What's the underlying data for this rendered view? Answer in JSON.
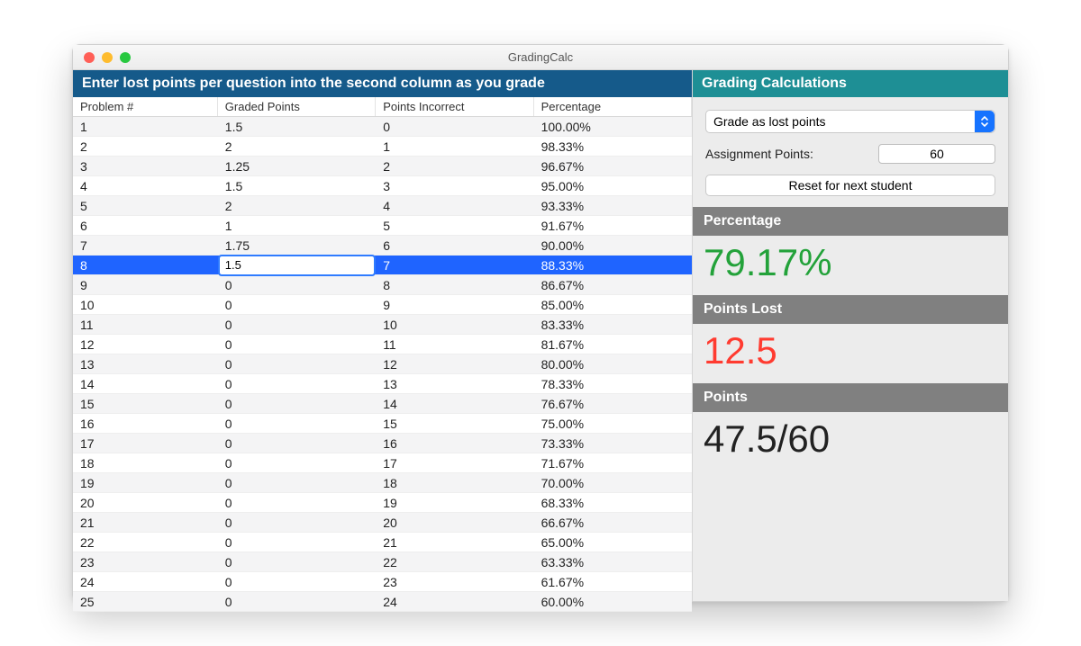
{
  "window": {
    "title": "GradingCalc"
  },
  "colors": {
    "title_bg_start": "#f8f8f8",
    "title_bg_end": "#ececec",
    "traffic_close": "#ff5f57",
    "traffic_min": "#febc2e",
    "traffic_max": "#28c840",
    "left_banner": "#155a8a",
    "right_banner": "#1e8f95",
    "stat_header": "#808080",
    "percentage_value": "#23a23a",
    "pointslost_value": "#ff3b30",
    "points_value": "#222222",
    "selection": "#1f64ff",
    "select_button": "#1673ff",
    "alt_row": "#f4f4f5"
  },
  "left": {
    "banner": "Enter lost points per question into the second column as you grade",
    "columns": [
      "Problem #",
      "Graded Points",
      "Points Incorrect",
      "Percentage"
    ],
    "selected_row_index": 7,
    "editing_cell": {
      "row": 7,
      "col": 1,
      "value": "1.5"
    },
    "rows": [
      {
        "problem": "1",
        "graded": "1.5",
        "incorrect": "0",
        "pct": "100.00%"
      },
      {
        "problem": "2",
        "graded": "2",
        "incorrect": "1",
        "pct": "98.33%"
      },
      {
        "problem": "3",
        "graded": "1.25",
        "incorrect": "2",
        "pct": "96.67%"
      },
      {
        "problem": "4",
        "graded": "1.5",
        "incorrect": "3",
        "pct": "95.00%"
      },
      {
        "problem": "5",
        "graded": "2",
        "incorrect": "4",
        "pct": "93.33%"
      },
      {
        "problem": "6",
        "graded": "1",
        "incorrect": "5",
        "pct": "91.67%"
      },
      {
        "problem": "7",
        "graded": "1.75",
        "incorrect": "6",
        "pct": "90.00%"
      },
      {
        "problem": "8",
        "graded": "1.5",
        "incorrect": "7",
        "pct": "88.33%"
      },
      {
        "problem": "9",
        "graded": "0",
        "incorrect": "8",
        "pct": "86.67%"
      },
      {
        "problem": "10",
        "graded": "0",
        "incorrect": "9",
        "pct": "85.00%"
      },
      {
        "problem": "11",
        "graded": "0",
        "incorrect": "10",
        "pct": "83.33%"
      },
      {
        "problem": "12",
        "graded": "0",
        "incorrect": "11",
        "pct": "81.67%"
      },
      {
        "problem": "13",
        "graded": "0",
        "incorrect": "12",
        "pct": "80.00%"
      },
      {
        "problem": "14",
        "graded": "0",
        "incorrect": "13",
        "pct": "78.33%"
      },
      {
        "problem": "15",
        "graded": "0",
        "incorrect": "14",
        "pct": "76.67%"
      },
      {
        "problem": "16",
        "graded": "0",
        "incorrect": "15",
        "pct": "75.00%"
      },
      {
        "problem": "17",
        "graded": "0",
        "incorrect": "16",
        "pct": "73.33%"
      },
      {
        "problem": "18",
        "graded": "0",
        "incorrect": "17",
        "pct": "71.67%"
      },
      {
        "problem": "19",
        "graded": "0",
        "incorrect": "18",
        "pct": "70.00%"
      },
      {
        "problem": "20",
        "graded": "0",
        "incorrect": "19",
        "pct": "68.33%"
      },
      {
        "problem": "21",
        "graded": "0",
        "incorrect": "20",
        "pct": "66.67%"
      },
      {
        "problem": "22",
        "graded": "0",
        "incorrect": "21",
        "pct": "65.00%"
      },
      {
        "problem": "23",
        "graded": "0",
        "incorrect": "22",
        "pct": "63.33%"
      },
      {
        "problem": "24",
        "graded": "0",
        "incorrect": "23",
        "pct": "61.67%"
      },
      {
        "problem": "25",
        "graded": "0",
        "incorrect": "24",
        "pct": "60.00%"
      }
    ]
  },
  "right": {
    "banner": "Grading  Calculations",
    "mode_select": {
      "value": "Grade as lost points"
    },
    "assignment_points": {
      "label": "Assignment Points:",
      "value": "60"
    },
    "reset_button": "Reset for next student",
    "stats": {
      "percentage": {
        "label": "Percentage",
        "value": "79.17%"
      },
      "points_lost": {
        "label": "Points Lost",
        "value": "12.5"
      },
      "points": {
        "label": "Points",
        "value": "47.5/60"
      }
    }
  }
}
